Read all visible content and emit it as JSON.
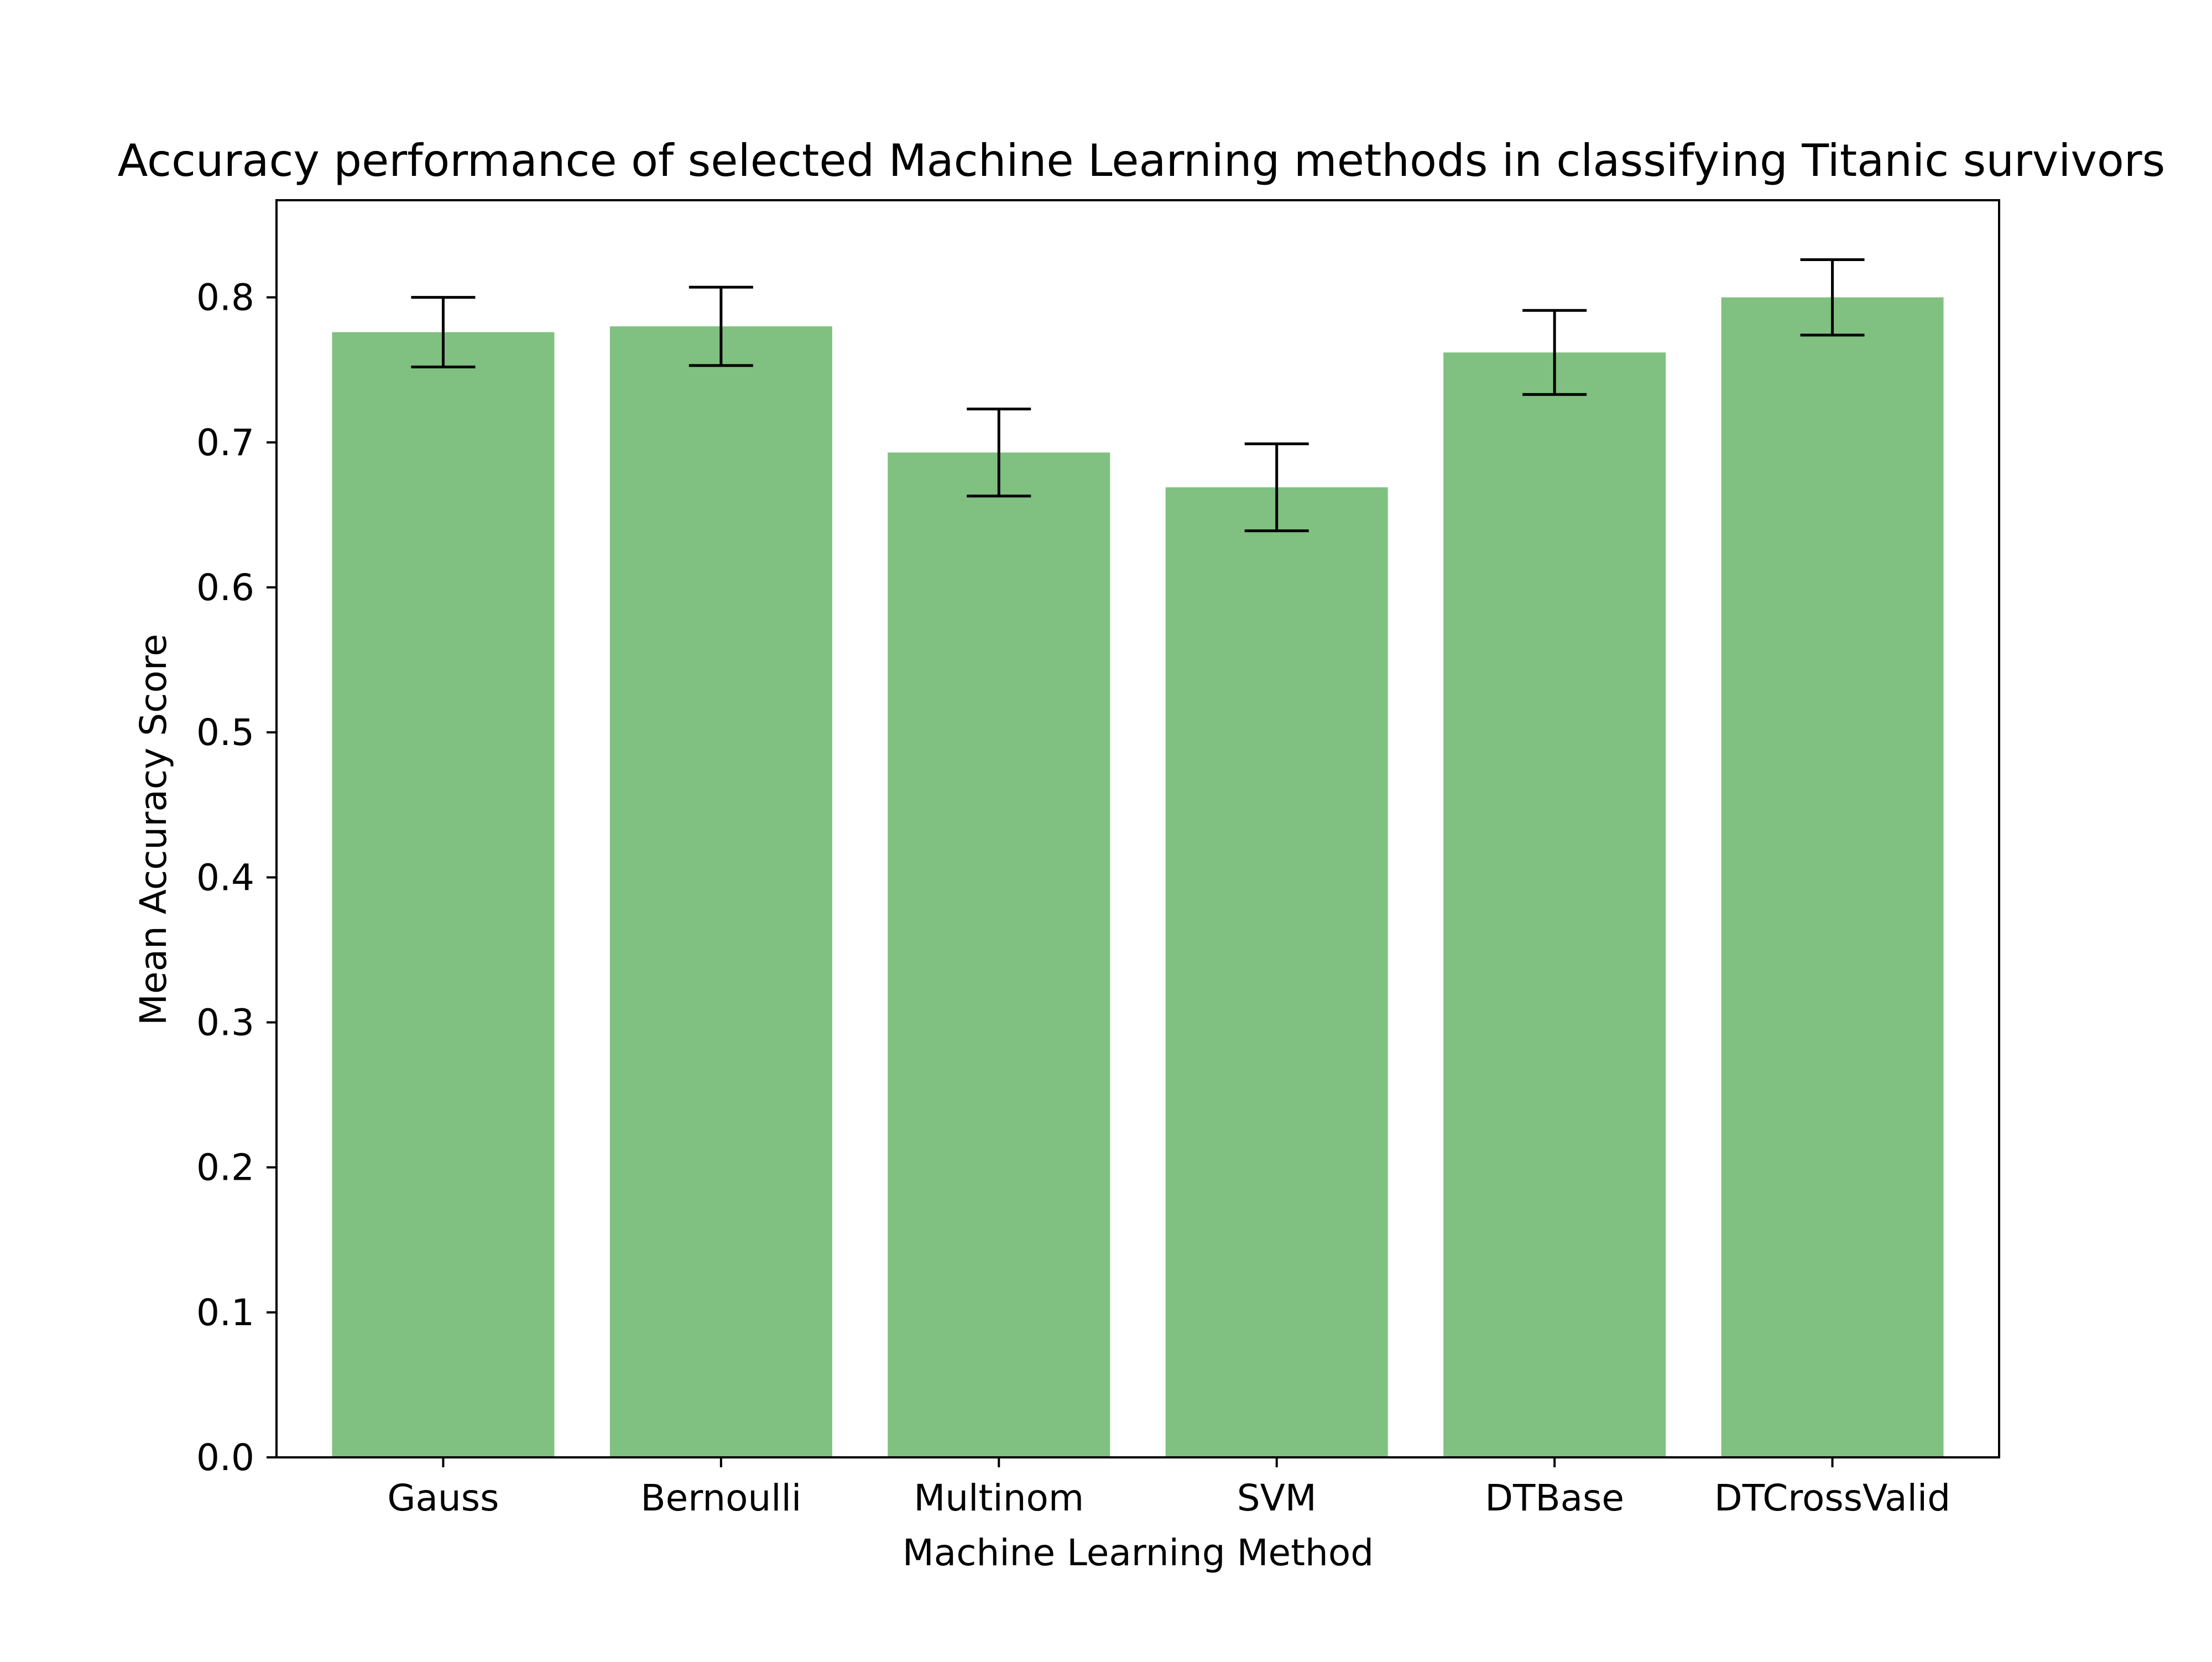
{
  "chart_data": {
    "type": "bar",
    "title": "Accuracy performance of selected Machine Learning methods in classifying Titanic survivors",
    "xlabel": "Machine Learning Method",
    "ylabel": "Mean Accuracy Score",
    "categories": [
      "Gauss",
      "Bernoulli",
      "Multinom",
      "SVM",
      "DTBase",
      "DTCrossValid"
    ],
    "values": [
      0.776,
      0.78,
      0.693,
      0.669,
      0.762,
      0.8
    ],
    "errors": [
      0.024,
      0.027,
      0.03,
      0.03,
      0.029,
      0.026
    ],
    "ylim": [
      0,
      0.867
    ],
    "yticks": [
      0.0,
      0.1,
      0.2,
      0.3,
      0.4,
      0.5,
      0.6,
      0.7,
      0.8
    ],
    "grid": false,
    "legend": "none",
    "bar_color": "#80c080",
    "error_color": "#000000"
  }
}
